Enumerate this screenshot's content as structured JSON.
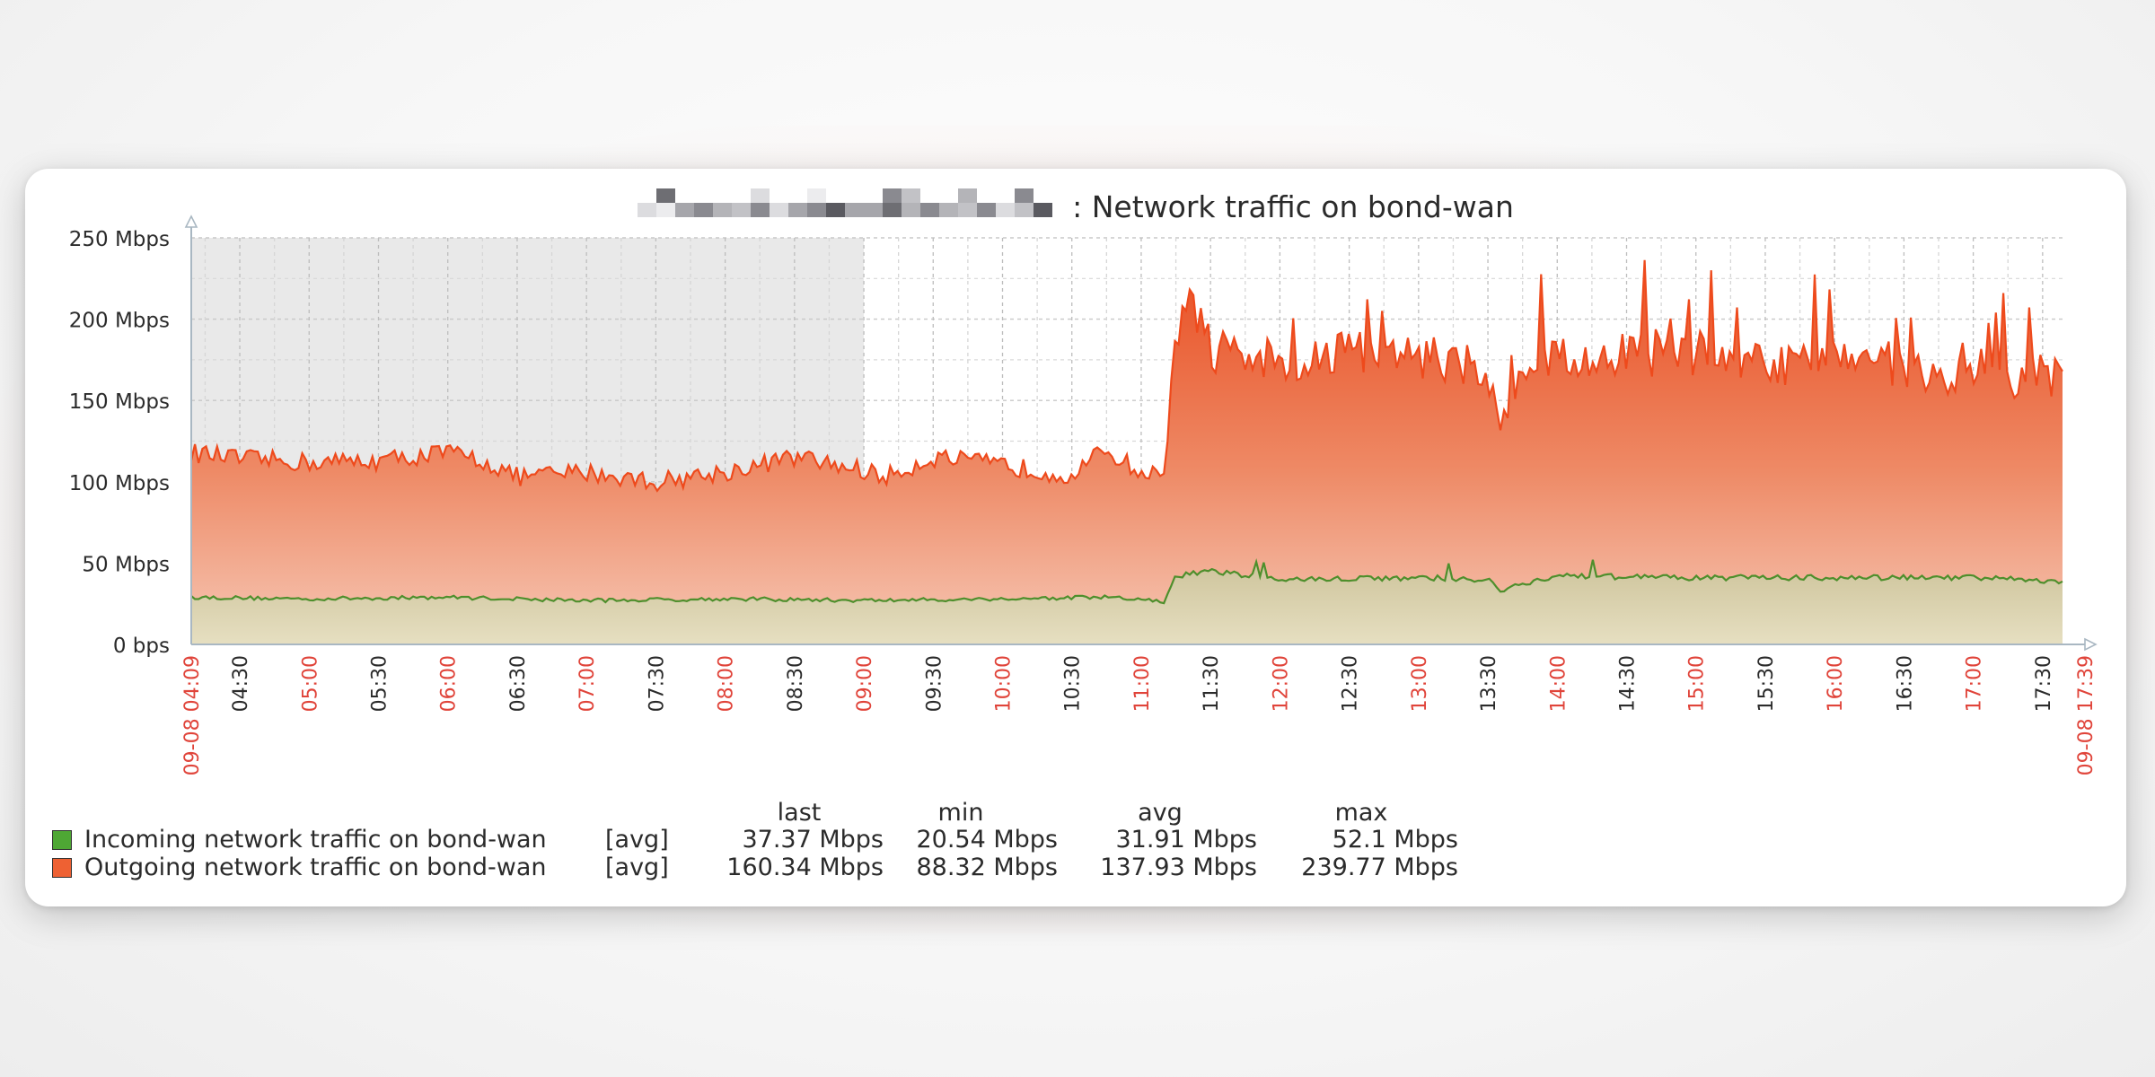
{
  "title": ": Network traffic on bond-wan",
  "legend": {
    "headers": [
      "last",
      "min",
      "avg",
      "max"
    ],
    "rows": [
      {
        "name": "Incoming network traffic on bond-wan",
        "func": "[avg]",
        "last": "37.37 Mbps",
        "min": "20.54 Mbps",
        "avg": "31.91 Mbps",
        "max": "52.1 Mbps",
        "color": "#4ea734"
      },
      {
        "name": "Outgoing network traffic on bond-wan",
        "func": "[avg]",
        "last": "160.34 Mbps",
        "min": "88.32 Mbps",
        "avg": "137.93 Mbps",
        "max": "239.77 Mbps",
        "color": "#ee6133"
      }
    ]
  },
  "chart_data": {
    "type": "area",
    "title": ": Network traffic on bond-wan",
    "ylim": [
      0,
      250
    ],
    "y_ticks": [
      "0 bps",
      "50 Mbps",
      "100 Mbps",
      "150 Mbps",
      "200 Mbps",
      "250 Mbps"
    ],
    "y_tick_values": [
      0,
      50,
      100,
      150,
      200,
      250
    ],
    "x_start_label": "09-08 04:09",
    "x_end_label": "09-08 17:39",
    "x_ticks": [
      {
        "label": "04:30",
        "major": false
      },
      {
        "label": "05:00",
        "major": true
      },
      {
        "label": "05:30",
        "major": false
      },
      {
        "label": "06:00",
        "major": true
      },
      {
        "label": "06:30",
        "major": false
      },
      {
        "label": "07:00",
        "major": true
      },
      {
        "label": "07:30",
        "major": false
      },
      {
        "label": "08:00",
        "major": true
      },
      {
        "label": "08:30",
        "major": false
      },
      {
        "label": "09:00",
        "major": true
      },
      {
        "label": "09:30",
        "major": false
      },
      {
        "label": "10:00",
        "major": true
      },
      {
        "label": "10:30",
        "major": false
      },
      {
        "label": "11:00",
        "major": true
      },
      {
        "label": "11:30",
        "major": false
      },
      {
        "label": "12:00",
        "major": true
      },
      {
        "label": "12:30",
        "major": false
      },
      {
        "label": "13:00",
        "major": true
      },
      {
        "label": "13:30",
        "major": false
      },
      {
        "label": "14:00",
        "major": true
      },
      {
        "label": "14:30",
        "major": false
      },
      {
        "label": "15:00",
        "major": true
      },
      {
        "label": "15:30",
        "major": false
      },
      {
        "label": "16:00",
        "major": true
      },
      {
        "label": "16:30",
        "major": false
      },
      {
        "label": "17:00",
        "major": true
      },
      {
        "label": "17:30",
        "major": false
      }
    ],
    "x_tick_times": [
      "04:30",
      "05:00",
      "05:30",
      "06:00",
      "06:30",
      "07:00",
      "07:30",
      "08:00",
      "08:30",
      "09:00",
      "09:30",
      "10:00",
      "10:30",
      "11:00",
      "11:30",
      "12:00",
      "12:30",
      "13:00",
      "13:30",
      "14:00",
      "14:30",
      "15:00",
      "15:30",
      "16:00",
      "16:30",
      "17:00",
      "17:30"
    ],
    "x_start_time": "04:09",
    "x_end_time": "17:39",
    "shaded_period": [
      "04:09",
      "09:00"
    ],
    "series": [
      {
        "name": "Outgoing network traffic on bond-wan",
        "color": "#ee6133",
        "x": [
          "04:09",
          "04:30",
          "05:00",
          "05:30",
          "06:00",
          "06:15",
          "06:30",
          "07:00",
          "07:30",
          "08:00",
          "08:20",
          "08:30",
          "09:00",
          "09:10",
          "09:30",
          "10:00",
          "10:15",
          "10:30",
          "10:45",
          "11:00",
          "11:05",
          "11:10",
          "11:15",
          "11:20",
          "11:30",
          "11:45",
          "12:00",
          "12:15",
          "12:30",
          "12:45",
          "13:00",
          "13:15",
          "13:30",
          "13:35",
          "13:45",
          "14:00",
          "14:15",
          "14:30",
          "14:45",
          "15:00",
          "15:15",
          "15:30",
          "15:45",
          "16:00",
          "16:15",
          "16:30",
          "16:45",
          "17:00",
          "17:15",
          "17:30",
          "17:39"
        ],
        "values": [
          118,
          114,
          112,
          113,
          118,
          113,
          103,
          106,
          100,
          106,
          112,
          115,
          107,
          103,
          115,
          110,
          107,
          104,
          120,
          105,
          104,
          108,
          190,
          215,
          182,
          173,
          175,
          176,
          185,
          173,
          178,
          172,
          168,
          135,
          165,
          178,
          170,
          178,
          175,
          180,
          172,
          175,
          170,
          180,
          175,
          172,
          162,
          170,
          165,
          168,
          160
        ]
      },
      {
        "name": "Incoming network traffic on bond-wan",
        "color": "#4ea734",
        "x": [
          "04:09",
          "05:00",
          "06:00",
          "07:00",
          "08:00",
          "09:00",
          "10:00",
          "10:45",
          "11:05",
          "11:10",
          "11:15",
          "11:30",
          "12:00",
          "13:00",
          "13:30",
          "13:35",
          "14:00",
          "15:00",
          "16:00",
          "17:00",
          "17:39"
        ],
        "values": [
          29,
          28,
          29,
          27,
          28,
          27,
          28,
          29,
          27,
          26,
          42,
          45,
          40,
          41,
          40,
          33,
          42,
          41,
          41,
          41,
          39
        ]
      }
    ]
  }
}
